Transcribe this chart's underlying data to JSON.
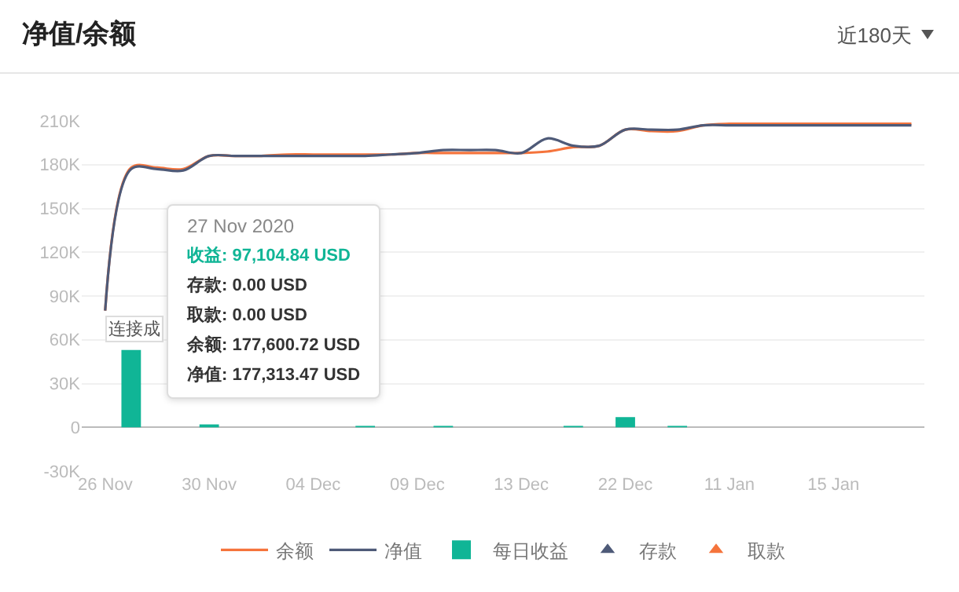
{
  "chart_data": {
    "type": "line",
    "title": "净值/余额",
    "categories": [
      "26 Nov",
      null,
      null,
      null,
      "30 Nov",
      null,
      null,
      null,
      "04 Dec",
      null,
      null,
      null,
      "09 Dec",
      null,
      null,
      null,
      "13 Dec",
      null,
      null,
      null,
      "22 Dec",
      null,
      null,
      null,
      "11 Jan",
      null,
      null,
      null,
      "15 Jan",
      null,
      null,
      null
    ],
    "series": [
      {
        "name": "余额",
        "color": "#f5743c",
        "values": [
          80000,
          178000,
          178000,
          177000,
          186000,
          186000,
          186000,
          187000,
          187000,
          187000,
          187000,
          187000,
          188000,
          188000,
          188000,
          188000,
          188000,
          189000,
          192000,
          193000,
          204000,
          203000,
          203000,
          207000,
          208000,
          208000,
          208000,
          208000,
          208000,
          208000,
          208000,
          208000
        ]
      },
      {
        "name": "净值",
        "color": "#4e5a78",
        "values": [
          80000,
          177000,
          177000,
          176000,
          186000,
          186000,
          186000,
          186000,
          186000,
          186000,
          186000,
          187000,
          188000,
          190000,
          190000,
          190000,
          188000,
          198000,
          193000,
          193000,
          204000,
          204000,
          204000,
          207000,
          207000,
          207000,
          207000,
          207000,
          207000,
          207000,
          207000,
          207000
        ]
      },
      {
        "name": "每日收益",
        "type": "bar",
        "color": "#10b596",
        "values": [
          null,
          53000,
          null,
          null,
          2000,
          null,
          null,
          null,
          null,
          null,
          1000,
          null,
          null,
          1000,
          null,
          null,
          null,
          null,
          1000,
          null,
          7000,
          null,
          1000,
          null,
          null,
          null,
          null,
          null,
          null,
          null,
          null,
          null
        ]
      },
      {
        "name": "存款",
        "type": "scatter",
        "marker": "triangle",
        "color": "#4e5a78",
        "values": [
          null,
          null,
          null,
          null,
          null,
          null,
          null,
          null,
          null,
          null,
          null,
          null,
          null,
          null,
          null,
          null,
          null,
          null,
          null,
          null,
          null,
          null,
          null,
          null,
          null,
          null,
          null,
          null,
          null,
          null,
          null,
          null
        ]
      },
      {
        "name": "取款",
        "type": "scatter",
        "marker": "triangle",
        "color": "#f5743c",
        "values": [
          null,
          null,
          null,
          null,
          null,
          null,
          null,
          null,
          null,
          null,
          null,
          null,
          null,
          null,
          null,
          null,
          null,
          null,
          null,
          null,
          null,
          null,
          null,
          null,
          null,
          null,
          null,
          null,
          null,
          null,
          null,
          null
        ]
      }
    ],
    "ylim": [
      -30000,
      210000
    ],
    "yticks": [
      {
        "value": -30000,
        "label": "-30K"
      },
      0,
      {
        "value": 30000,
        "label": "30K"
      },
      {
        "value": 60000,
        "label": "60K"
      },
      {
        "value": 90000,
        "label": "90K"
      },
      {
        "value": 120000,
        "label": "120K"
      },
      {
        "value": 150000,
        "label": "150K"
      },
      {
        "value": 180000,
        "label": "180K"
      },
      {
        "value": 210000,
        "label": "210K"
      }
    ],
    "grid": "y",
    "legend": "bottom",
    "marker": "none",
    "line_style": "solid",
    "annotations": [
      "近180天",
      "27 Nov 2020",
      "收益: 97,104.84 USD",
      "存款: 0.00 USD",
      "取款: 0.00 USD",
      "余额: 177,600.72 USD",
      "净值: 177,313.47 USD",
      {
        "text": "连接成",
        "x": "26 Nov",
        "y": 80000
      }
    ]
  }
}
